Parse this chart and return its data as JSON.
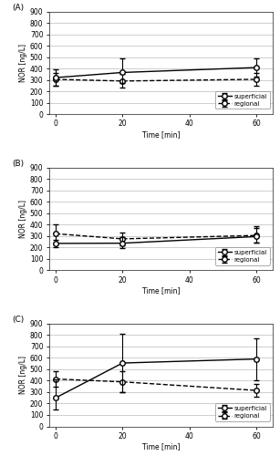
{
  "panels": [
    {
      "label": "(A)",
      "superficial": {
        "x": [
          0,
          20,
          60
        ],
        "y": [
          320,
          365,
          408
        ],
        "yerr_lo": [
          75,
          95,
          80
        ],
        "yerr_hi": [
          75,
          120,
          80
        ]
      },
      "regional": {
        "x": [
          0,
          20,
          60
        ],
        "y": [
          305,
          290,
          305
        ],
        "yerr_lo": [
          55,
          60,
          55
        ],
        "yerr_hi": [
          55,
          60,
          55
        ]
      }
    },
    {
      "label": "(B)",
      "superficial": {
        "x": [
          0,
          20,
          60
        ],
        "y": [
          235,
          237,
          295
        ],
        "yerr_lo": [
          30,
          42,
          55
        ],
        "yerr_hi": [
          30,
          55,
          90
        ]
      },
      "regional": {
        "x": [
          0,
          20,
          60
        ],
        "y": [
          320,
          275,
          305
        ],
        "yerr_lo": [
          85,
          55,
          65
        ],
        "yerr_hi": [
          85,
          55,
          65
        ]
      }
    },
    {
      "label": "(C)",
      "superficial": {
        "x": [
          0,
          20,
          60
        ],
        "y": [
          250,
          555,
          590
        ],
        "yerr_lo": [
          100,
          255,
          185
        ],
        "yerr_hi": [
          165,
          255,
          185
        ]
      },
      "regional": {
        "x": [
          0,
          20,
          60
        ],
        "y": [
          415,
          390,
          315
        ],
        "yerr_lo": [
          70,
          90,
          55
        ],
        "yerr_hi": [
          70,
          90,
          55
        ]
      }
    }
  ],
  "ylim": [
    0,
    900
  ],
  "yticks": [
    0,
    100,
    200,
    300,
    400,
    500,
    600,
    700,
    800,
    900
  ],
  "xlim": [
    -2,
    65
  ],
  "xticks": [
    0,
    20,
    40,
    60
  ],
  "ylabel": "NOR [ng/L]",
  "xlabel": "Time [min]",
  "superficial_color": "#000000",
  "regional_color": "#000000",
  "background_color": "#ffffff",
  "grid_color": "#bbbbbb",
  "legend_superficial": "superficial",
  "legend_regional": "regional",
  "capsize": 2,
  "linewidth": 1.0,
  "markersize": 4
}
